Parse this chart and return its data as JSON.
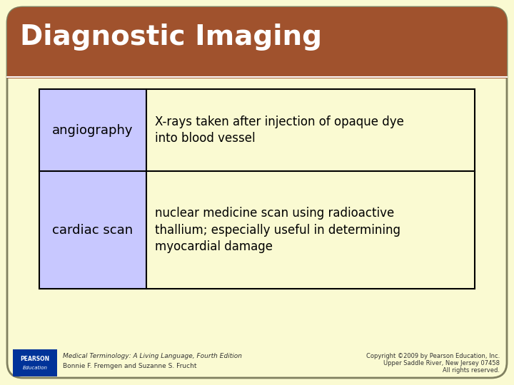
{
  "title": "Diagnostic Imaging",
  "title_color": "#FFFFFF",
  "title_bg_color": "#A0522D",
  "title_bg_color2": "#C0622D",
  "slide_bg_color": "#FAFAD2",
  "slide_border_color": "#808060",
  "table_rows": [
    {
      "term": "angiography",
      "definition": "X-rays taken after injection of opaque dye\ninto blood vessel"
    },
    {
      "term": "cardiac scan",
      "definition": "nuclear medicine scan using radioactive\nthallium; especially useful in determining\nmyocardial damage"
    }
  ],
  "term_bg_color": "#C8C8FF",
  "table_border_color": "#000000",
  "table_text_color": "#000000",
  "footer_left_line1": "Medical Terminology: A Living Language, Fourth Edition",
  "footer_left_line2": "Bonnie F. Fremgen and Suzanne S. Frucht",
  "footer_right_line1": "Copyright ©2009 by Pearson Education, Inc.",
  "footer_right_line2": "Upper Saddle River, New Jersey 07458",
  "footer_right_line3": "All rights reserved.",
  "footer_text_color": "#333333",
  "pearson_box_color": "#003399",
  "pearson_text_color": "#FFFFFF"
}
